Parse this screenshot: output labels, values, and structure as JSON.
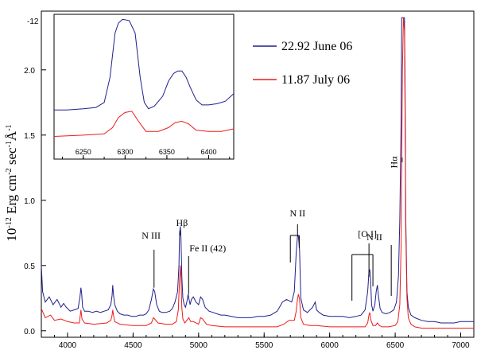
{
  "chart_data": [
    {
      "type": "line",
      "title": "",
      "xlabel": "",
      "ylabel_base": "10",
      "ylabel_exp": "-12",
      "ylabel_rest": " Erg cm",
      "ylabel_cm_exp": "-2",
      "ylabel_sec": " sec",
      "ylabel_sec_exp": "-1",
      "ylabel_ang": "Å",
      "ylabel_ang_exp": "-1",
      "y_top_label": "-12",
      "xlim": [
        3800,
        7100
      ],
      "ylim": [
        -0.05,
        2.45
      ],
      "x_ticks": [
        "4000",
        "4500",
        "5000",
        "5500",
        "6000",
        "6500",
        "7000"
      ],
      "y_ticks": [
        "0.0",
        "0.5",
        "1.0",
        "1.5",
        "2.0"
      ],
      "legend_position": "top-right",
      "series": [
        {
          "name": "22.92 June 06",
          "color": "#1f1f8c",
          "x": [
            3800,
            3810,
            3830,
            3860,
            3890,
            3920,
            3950,
            3970,
            3990,
            4000,
            4020,
            4050,
            4080,
            4095,
            4102,
            4108,
            4115,
            4130,
            4160,
            4190,
            4220,
            4250,
            4280,
            4310,
            4330,
            4340,
            4345,
            4350,
            4360,
            4380,
            4400,
            4430,
            4460,
            4490,
            4520,
            4550,
            4580,
            4600,
            4620,
            4640,
            4655,
            4665,
            4680,
            4700,
            4720,
            4750,
            4780,
            4800,
            4820,
            4840,
            4850,
            4855,
            4861,
            4866,
            4872,
            4880,
            4890,
            4900,
            4910,
            4920,
            4925,
            4935,
            4945,
            4960,
            4980,
            5000,
            5015,
            5030,
            5050,
            5080,
            5110,
            5140,
            5170,
            5200,
            5250,
            5300,
            5350,
            5400,
            5450,
            5500,
            5550,
            5600,
            5640,
            5670,
            5690,
            5710,
            5730,
            5745,
            5755,
            5762,
            5770,
            5780,
            5800,
            5830,
            5870,
            5890,
            5900,
            5920,
            5950,
            6000,
            6050,
            6100,
            6150,
            6200,
            6240,
            6270,
            6290,
            6300,
            6306,
            6312,
            6320,
            6330,
            6345,
            6355,
            6364,
            6372,
            6385,
            6400,
            6430,
            6460,
            6490,
            6510,
            6525,
            6535,
            6545,
            6550,
            6555,
            6563,
            6571,
            6576,
            6580,
            6590,
            6600,
            6620,
            6650,
            6700,
            6750,
            6800,
            6850,
            6900,
            6950,
            7000,
            7050,
            7100
          ],
          "y": [
            0.5,
            0.3,
            0.22,
            0.26,
            0.2,
            0.24,
            0.18,
            0.21,
            0.18,
            0.17,
            0.15,
            0.16,
            0.17,
            0.26,
            0.33,
            0.28,
            0.18,
            0.15,
            0.15,
            0.14,
            0.15,
            0.14,
            0.15,
            0.16,
            0.2,
            0.27,
            0.35,
            0.28,
            0.2,
            0.15,
            0.13,
            0.12,
            0.12,
            0.11,
            0.11,
            0.12,
            0.12,
            0.13,
            0.16,
            0.24,
            0.32,
            0.3,
            0.2,
            0.15,
            0.14,
            0.14,
            0.15,
            0.17,
            0.22,
            0.3,
            0.5,
            0.75,
            0.8,
            0.7,
            0.42,
            0.25,
            0.2,
            0.18,
            0.22,
            0.28,
            0.25,
            0.2,
            0.24,
            0.26,
            0.22,
            0.2,
            0.26,
            0.24,
            0.18,
            0.15,
            0.14,
            0.13,
            0.12,
            0.12,
            0.11,
            0.1,
            0.1,
            0.1,
            0.11,
            0.11,
            0.12,
            0.15,
            0.22,
            0.24,
            0.23,
            0.22,
            0.3,
            0.6,
            0.73,
            0.72,
            0.62,
            0.25,
            0.16,
            0.14,
            0.18,
            0.22,
            0.16,
            0.14,
            0.12,
            0.11,
            0.11,
            0.11,
            0.1,
            0.11,
            0.12,
            0.16,
            0.3,
            0.45,
            0.47,
            0.4,
            0.2,
            0.15,
            0.2,
            0.3,
            0.35,
            0.27,
            0.17,
            0.14,
            0.13,
            0.14,
            0.16,
            0.22,
            0.42,
            0.85,
            1.6,
            2.4,
            2.4,
            2.4,
            2.4,
            1.8,
            0.9,
            0.3,
            0.18,
            0.12,
            0.1,
            0.08,
            0.07,
            0.07,
            0.06,
            0.06,
            0.06,
            0.07,
            0.07,
            0.07
          ]
        },
        {
          "name": "11.87 July 06",
          "color": "#ee1b1b",
          "x": [
            3800,
            3830,
            3870,
            3900,
            3950,
            4000,
            4050,
            4090,
            4102,
            4110,
            4130,
            4200,
            4300,
            4330,
            4340,
            4345,
            4350,
            4360,
            4400,
            4500,
            4600,
            4640,
            4655,
            4665,
            4690,
            4750,
            4800,
            4830,
            4845,
            4855,
            4861,
            4866,
            4872,
            4880,
            4895,
            4910,
            4925,
            4940,
            4960,
            5000,
            5015,
            5030,
            5060,
            5100,
            5200,
            5300,
            5400,
            5500,
            5600,
            5650,
            5690,
            5730,
            5745,
            5755,
            5762,
            5770,
            5780,
            5800,
            5850,
            5900,
            6000,
            6100,
            6200,
            6270,
            6290,
            6300,
            6306,
            6315,
            6330,
            6350,
            6364,
            6380,
            6400,
            6450,
            6500,
            6520,
            6535,
            6545,
            6550,
            6555,
            6563,
            6571,
            6576,
            6580,
            6590,
            6600,
            6620,
            6650,
            6700,
            6800,
            6900,
            7000,
            7100
          ],
          "y": [
            0.17,
            0.1,
            0.12,
            0.08,
            0.09,
            0.07,
            0.06,
            0.06,
            0.16,
            0.09,
            0.06,
            0.05,
            0.06,
            0.08,
            0.12,
            0.16,
            0.12,
            0.07,
            0.05,
            0.04,
            0.04,
            0.06,
            0.1,
            0.09,
            0.06,
            0.05,
            0.05,
            0.07,
            0.16,
            0.4,
            0.5,
            0.4,
            0.18,
            0.09,
            0.06,
            0.08,
            0.1,
            0.07,
            0.07,
            0.05,
            0.1,
            0.09,
            0.05,
            0.04,
            0.03,
            0.03,
            0.03,
            0.03,
            0.03,
            0.05,
            0.08,
            0.08,
            0.15,
            0.25,
            0.28,
            0.24,
            0.1,
            0.05,
            0.04,
            0.04,
            0.03,
            0.03,
            0.03,
            0.03,
            0.06,
            0.12,
            0.14,
            0.08,
            0.04,
            0.04,
            0.06,
            0.04,
            0.03,
            0.03,
            0.04,
            0.07,
            0.2,
            0.65,
            1.3,
            2.0,
            2.4,
            2.3,
            1.6,
            0.8,
            0.25,
            0.1,
            0.05,
            0.03,
            0.02,
            0.02,
            0.02,
            0.02,
            0.02
          ]
        }
      ],
      "annotations": [
        {
          "text": "N III",
          "x": 4650,
          "y": 0.38
        },
        {
          "text": "Hβ",
          "x": 4861,
          "y": 0.78
        },
        {
          "text": "Fe II (42)",
          "x": 4924,
          "y": 0.33
        },
        {
          "text": "N II",
          "x": 5755,
          "y": 0.83
        },
        {
          "text": "[O I]",
          "x": 6300,
          "y": 0.5
        },
        {
          "text": "N II",
          "x": 6548,
          "y": 0.42
        },
        {
          "text": "Hα",
          "x": 6563,
          "y": 2.4
        }
      ]
    },
    {
      "type": "line",
      "title": "",
      "role": "inset",
      "xlim": [
        6215,
        6430
      ],
      "ylim": [
        1.4,
        2.55
      ],
      "x_ticks": [
        "6250",
        "6300",
        "6350",
        "6400"
      ],
      "series": [
        {
          "name": "22.92 June 06",
          "color": "#1f1f8c",
          "x": [
            6215,
            6230,
            6250,
            6265,
            6275,
            6282,
            6288,
            6292,
            6297,
            6305,
            6312,
            6318,
            6323,
            6328,
            6335,
            6345,
            6352,
            6358,
            6363,
            6368,
            6373,
            6378,
            6385,
            6392,
            6400,
            6410,
            6420,
            6430
          ],
          "y": [
            1.79,
            1.79,
            1.8,
            1.81,
            1.85,
            2.05,
            2.4,
            2.48,
            2.51,
            2.5,
            2.4,
            2.05,
            1.85,
            1.8,
            1.82,
            1.9,
            2.02,
            2.08,
            2.1,
            2.1,
            2.05,
            1.97,
            1.87,
            1.83,
            1.83,
            1.84,
            1.86,
            1.92
          ]
        },
        {
          "name": "11.87 July 06",
          "color": "#ee1b1b",
          "x": [
            6215,
            6250,
            6275,
            6285,
            6292,
            6300,
            6308,
            6316,
            6325,
            6340,
            6352,
            6360,
            6368,
            6376,
            6385,
            6400,
            6415,
            6430
          ],
          "y": [
            1.58,
            1.59,
            1.6,
            1.65,
            1.73,
            1.77,
            1.78,
            1.7,
            1.62,
            1.62,
            1.65,
            1.69,
            1.7,
            1.68,
            1.63,
            1.62,
            1.62,
            1.64
          ]
        }
      ]
    }
  ]
}
